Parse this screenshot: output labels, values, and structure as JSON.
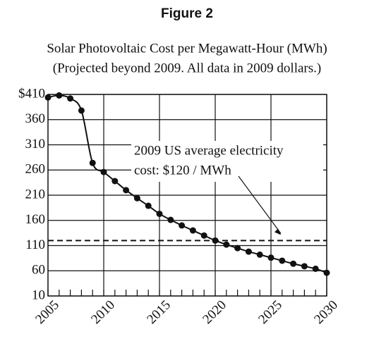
{
  "figure_label": "Figure 2",
  "chart_data": {
    "type": "line",
    "title": [
      "Solar Photovoltaic Cost per Megawatt-Hour (MWh)",
      "(Projected beyond 2009. All data in 2009 dollars.)"
    ],
    "x": [
      2005,
      2006,
      2007,
      2008,
      2009,
      2010,
      2011,
      2012,
      2013,
      2014,
      2015,
      2016,
      2017,
      2018,
      2019,
      2020,
      2021,
      2022,
      2023,
      2024,
      2025,
      2026,
      2027,
      2028,
      2029,
      2030
    ],
    "values": [
      404,
      408,
      402,
      378,
      274,
      256,
      238,
      220,
      204,
      189,
      173,
      161,
      150,
      140,
      130,
      120,
      112,
      105,
      98,
      92,
      86,
      80,
      74,
      69,
      64,
      56
    ],
    "color": "#111111",
    "xlim": [
      2005,
      2030
    ],
    "xticks": [
      2005,
      2010,
      2015,
      2020,
      2025,
      2030
    ],
    "ylim": [
      10,
      410
    ],
    "yticks": [
      10,
      60,
      110,
      160,
      210,
      260,
      310,
      360,
      {
        "value": 410,
        "label": "$410"
      }
    ],
    "grid": true,
    "reference_line": {
      "value": 120,
      "style": "dashed"
    },
    "annotation": [
      "2009 US average electricity",
      "cost: $120 / MWh"
    ]
  }
}
